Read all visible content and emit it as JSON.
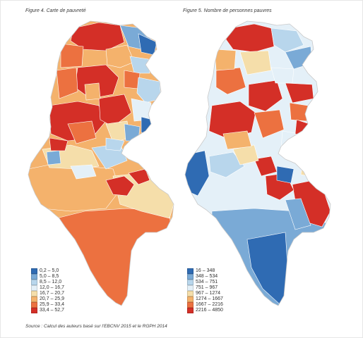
{
  "figures": [
    {
      "title": "Figure 4. Carte de pauvreté",
      "legend": [
        {
          "label": "0,2 – 5,0",
          "color": "#2f6bb3"
        },
        {
          "label": "5,0 – 8,5",
          "color": "#7aaad6"
        },
        {
          "label": "8,5 – 12,0",
          "color": "#b8d6ec"
        },
        {
          "label": "12,0 – 16,7",
          "color": "#e4f0f8"
        },
        {
          "label": "16,7 – 20,7",
          "color": "#f5deaa"
        },
        {
          "label": "20,7 – 25,9",
          "color": "#f4b26c"
        },
        {
          "label": "25,9 – 33,4",
          "color": "#ec7140"
        },
        {
          "label": "33,4 – 52,7",
          "color": "#d42f27"
        }
      ]
    },
    {
      "title": "Figure 5. Nombre de personnes pauvres",
      "legend": [
        {
          "label": "16 – 348",
          "color": "#2f6bb3"
        },
        {
          "label": "348 – 534",
          "color": "#7aaad6"
        },
        {
          "label": "534 – 751",
          "color": "#b8d6ec"
        },
        {
          "label": "751 – 967",
          "color": "#e4f0f8"
        },
        {
          "label": "967 – 1274",
          "color": "#f5deaa"
        },
        {
          "label": "1274 – 1667",
          "color": "#f4b26c"
        },
        {
          "label": "1667 – 2216",
          "color": "#ec7140"
        },
        {
          "label": "2216 – 4850",
          "color": "#d42f27"
        }
      ]
    }
  ],
  "source": "Source : Calcul des auteurs basé sur l'EBCNV 2015 et le RGPH 2014"
}
